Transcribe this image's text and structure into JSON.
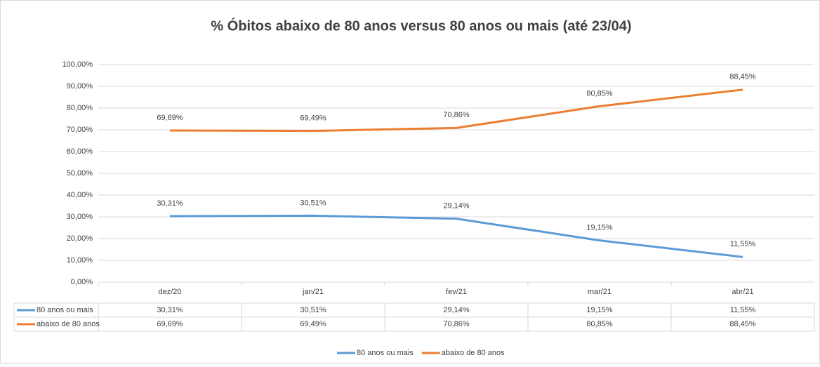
{
  "chart_data": {
    "type": "line",
    "title": "% Óbitos abaixo de 80 anos versus 80 anos ou mais (até 23/04)",
    "categories": [
      "dez/20",
      "jan/21",
      "fev/21",
      "mar/21",
      "abr/21"
    ],
    "series": [
      {
        "name": "80 anos ou mais",
        "color": "#5b9bd5",
        "values": [
          30.31,
          30.51,
          29.14,
          19.15,
          11.55
        ],
        "value_labels": [
          "30,31%",
          "30,51%",
          "29,14%",
          "19,15%",
          "11,55%"
        ]
      },
      {
        "name": "abaixo de 80 anos",
        "color": "#ed7d31",
        "values": [
          69.69,
          69.49,
          70.86,
          80.85,
          88.45
        ],
        "value_labels": [
          "69,69%",
          "69,49%",
          "70,86%",
          "80,85%",
          "88,45%"
        ]
      }
    ],
    "ylim": [
      0,
      100
    ],
    "yticks": [
      {
        "value": 0,
        "label": "0,00%"
      },
      {
        "value": 10,
        "label": "10,00%"
      },
      {
        "value": 20,
        "label": "20,00%"
      },
      {
        "value": 30,
        "label": "30,00%"
      },
      {
        "value": 40,
        "label": "40,00%"
      },
      {
        "value": 50,
        "label": "50,00%"
      },
      {
        "value": 60,
        "label": "60,00%"
      },
      {
        "value": 70,
        "label": "70,00%"
      },
      {
        "value": 80,
        "label": "80,00%"
      },
      {
        "value": 90,
        "label": "90,00%"
      },
      {
        "value": 100,
        "label": "100,00%"
      }
    ],
    "grid": true,
    "legend": "bottom",
    "data_table": true
  }
}
